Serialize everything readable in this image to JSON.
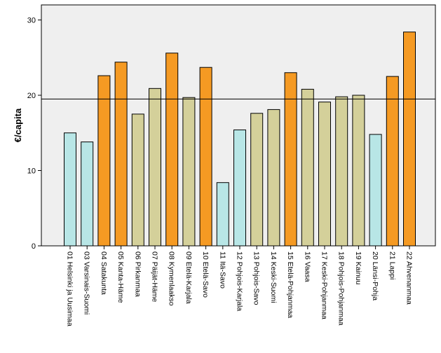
{
  "chart_data": {
    "type": "bar",
    "ylabel": "€/capita",
    "xlabel": "",
    "ylim": [
      0,
      32
    ],
    "yticks": [
      0,
      10,
      20,
      30
    ],
    "reference_line": 19.5,
    "grid": false,
    "categories": [
      "01 Helsinki ja Uusimaa",
      "03 Varsinais-Suomi",
      "04 Satakunta",
      "05 Kanta-Häme",
      "06 Pirkanmaa",
      "07 Päijät-Häme",
      "08 Kymenlaakso",
      "09 Etelä-Karjala",
      "10 Etelä-Savo",
      "11 Itä-Savo",
      "12 Pohjois-Karjala",
      "13 Pohjois-Savo",
      "14 Keski-Suomi",
      "15 Etelä-Pohjanmaa",
      "16 Vaasa",
      "17 Keski-Pohjanmaa",
      "18 Pohjois-Pohjanmaa",
      "19 Kainuu",
      "20 Länsi-Pohja",
      "21 Lappi",
      "22 Ahvenanmaa"
    ],
    "values": [
      15.0,
      13.8,
      22.6,
      24.4,
      17.5,
      20.9,
      25.6,
      19.7,
      23.7,
      8.4,
      15.4,
      17.6,
      18.1,
      23.0,
      20.8,
      19.1,
      19.8,
      20.0,
      14.8,
      22.5,
      28.4
    ],
    "bar_colors": [
      "#b8e6e6",
      "#b8e6e6",
      "#f59a23",
      "#f59a23",
      "#d4d09a",
      "#d4d09a",
      "#f59a23",
      "#d4d09a",
      "#f59a23",
      "#b8e6e6",
      "#b8e6e6",
      "#d4d09a",
      "#d4d09a",
      "#f59a23",
      "#d4d09a",
      "#d4d09a",
      "#d4d09a",
      "#d4d09a",
      "#b8e6e6",
      "#f59a23",
      "#f59a23"
    ],
    "plot_background": "#efefef"
  }
}
